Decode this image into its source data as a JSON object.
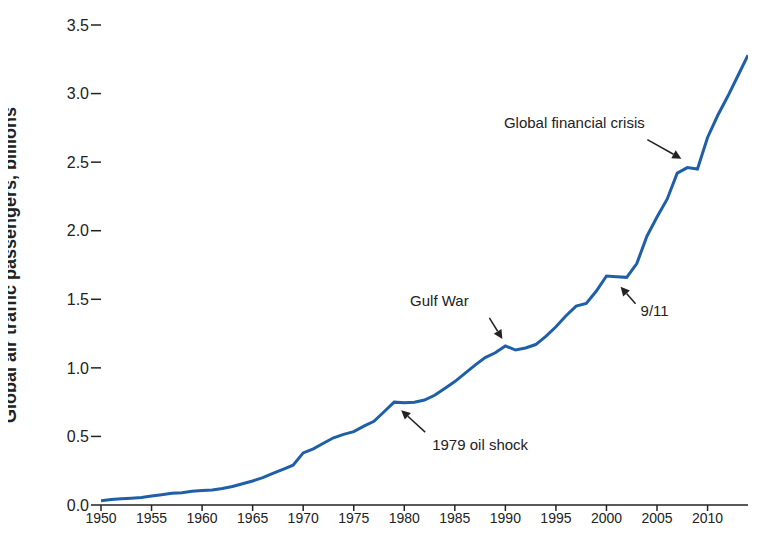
{
  "chart_data": {
    "type": "line",
    "y_label": "Global air traffic passengers, billions",
    "x": [
      1950,
      1951,
      1952,
      1953,
      1954,
      1955,
      1956,
      1957,
      1958,
      1959,
      1960,
      1961,
      1962,
      1963,
      1964,
      1965,
      1966,
      1967,
      1968,
      1969,
      1970,
      1971,
      1972,
      1973,
      1974,
      1975,
      1976,
      1977,
      1978,
      1979,
      1980,
      1981,
      1982,
      1983,
      1984,
      1985,
      1986,
      1987,
      1988,
      1989,
      1990,
      1991,
      1992,
      1993,
      1994,
      1995,
      1996,
      1997,
      1998,
      1999,
      2000,
      2001,
      2002,
      2003,
      2004,
      2005,
      2006,
      2007,
      2008,
      2009,
      2010,
      2011,
      2012,
      2013,
      2014
    ],
    "values": [
      0.03,
      0.04,
      0.045,
      0.05,
      0.055,
      0.065,
      0.075,
      0.085,
      0.09,
      0.1,
      0.105,
      0.11,
      0.12,
      0.135,
      0.155,
      0.175,
      0.2,
      0.23,
      0.26,
      0.29,
      0.38,
      0.41,
      0.45,
      0.49,
      0.515,
      0.535,
      0.575,
      0.61,
      0.68,
      0.75,
      0.745,
      0.75,
      0.765,
      0.8,
      0.85,
      0.9,
      0.96,
      1.02,
      1.075,
      1.11,
      1.16,
      1.13,
      1.145,
      1.17,
      1.23,
      1.3,
      1.38,
      1.45,
      1.47,
      1.56,
      1.67,
      1.665,
      1.66,
      1.76,
      1.96,
      2.1,
      2.23,
      2.42,
      2.46,
      2.45,
      2.68,
      2.84,
      2.98,
      3.13,
      3.28
    ],
    "color": "#1f5fa8",
    "xlim": [
      1950,
      2014
    ],
    "xticks": [
      1950,
      1955,
      1960,
      1965,
      1970,
      1975,
      1980,
      1985,
      1990,
      1995,
      2000,
      2005,
      2010
    ],
    "ylim": [
      0,
      3.5
    ],
    "yticks": [
      {
        "value": 0,
        "label": "0.0"
      },
      0.5,
      {
        "value": 1,
        "label": "1.0"
      },
      1.5,
      {
        "value": 2,
        "label": "2.0"
      },
      2.5,
      {
        "value": 3,
        "label": "3.0"
      },
      3.5
    ],
    "grid": false,
    "annotations": [
      {
        "text": "Global financial crisis",
        "x": 2008,
        "y": 2.46
      },
      {
        "text": "Gulf War",
        "x": 1990,
        "y": 1.16
      },
      {
        "text": "9/11",
        "x": 2001,
        "y": 1.665
      },
      {
        "text": "1979 oil shock",
        "x": 1979,
        "y": 0.75
      }
    ]
  }
}
